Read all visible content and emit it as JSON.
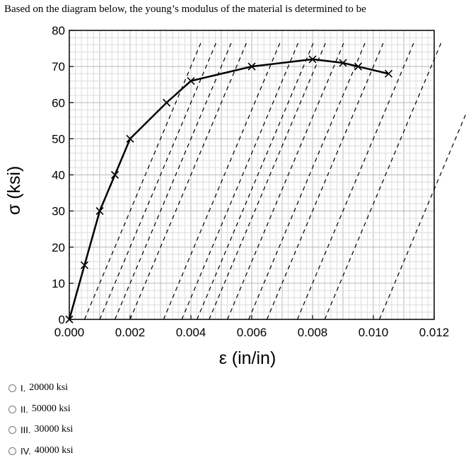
{
  "question": "Based on the diagram below, the young’s modulus of the material is determined to be",
  "options": [
    {
      "num": "I.",
      "value": "20000 ksi"
    },
    {
      "num": "II.",
      "value": "50000 ksi"
    },
    {
      "num": "III.",
      "value": "30000 ksi"
    },
    {
      "num": "IV.",
      "value": "40000 ksi"
    }
  ],
  "chart_data": {
    "type": "line",
    "title": "",
    "xlabel": "ε (in/in)",
    "ylabel": "σ (ksi)",
    "xlim": [
      0,
      0.012
    ],
    "ylim": [
      0,
      80
    ],
    "xticks": [
      "0.000",
      "0.002",
      "0.004",
      "0.006",
      "0.008",
      "0.010",
      "0.012"
    ],
    "yticks": [
      "0",
      "10",
      "20",
      "30",
      "40",
      "50",
      "60",
      "70",
      "80"
    ],
    "grid": true,
    "series": [
      {
        "x": [
          0.0,
          0.0005,
          0.001,
          0.0015,
          0.002,
          0.0032,
          0.004,
          0.006,
          0.008,
          0.009,
          0.0095,
          0.0105
        ],
        "y": [
          0,
          15,
          30,
          40,
          50,
          60,
          66,
          70,
          72,
          71,
          70,
          68
        ],
        "marker": "x",
        "color": "#000000"
      }
    ],
    "unload_lines_start_x": [
      0.0005,
      0.001,
      0.0015,
      0.002,
      0.0031,
      0.0037,
      0.0042,
      0.0046,
      0.0052,
      0.0059,
      0.0065,
      0.0075,
      0.0084,
      0.0102
    ]
  }
}
